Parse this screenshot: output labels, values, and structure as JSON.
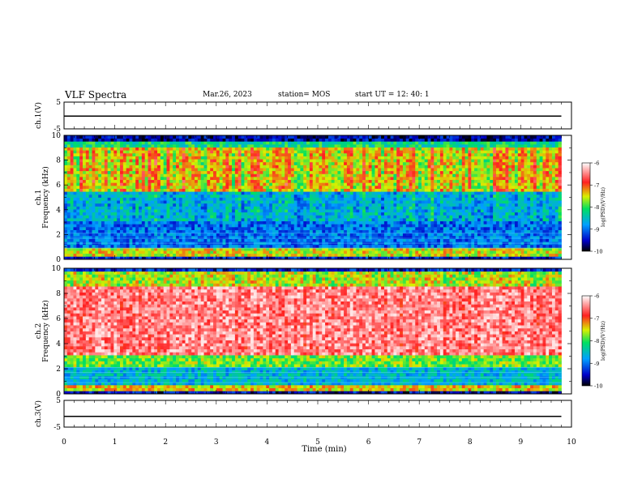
{
  "header": {
    "title": "VLF Spectra",
    "date": "Mar.26, 2023",
    "station": "station= MOS",
    "start_ut": "start  UT =    12: 40: 1"
  },
  "chart_data": [
    {
      "type": "line",
      "panel": "ch1-voltage",
      "ylabel": "ch.1(V)",
      "ylim": [
        -5,
        5
      ],
      "y_ticks": [
        "5",
        "-5"
      ],
      "series": [
        {
          "values": [
            -0.2,
            -0.2,
            -0.2,
            -0.2,
            -0.2
          ]
        }
      ],
      "x": [
        0,
        2.5,
        5,
        7.5,
        9.8
      ]
    },
    {
      "type": "heatmap",
      "panel": "ch1-spectrogram",
      "ylabel": "ch.1\nFrequency (kHz)",
      "ylim": [
        0,
        10
      ],
      "y_ticks": [
        "0",
        "2",
        "4",
        "6",
        "8",
        "10"
      ],
      "xlim": [
        0,
        10
      ],
      "data_extent_min": 9.8,
      "colorbar": {
        "label": "log(PSD)(V²/Hz)",
        "ticks": [
          "-6",
          "-7",
          "-8",
          "-9",
          "-10"
        ],
        "range": [
          -10,
          -6
        ]
      }
    },
    {
      "type": "heatmap",
      "panel": "ch2-spectrogram",
      "ylabel": "ch.2\nFrequency (kHz)",
      "ylim": [
        0,
        10
      ],
      "y_ticks": [
        "0",
        "2",
        "4",
        "6",
        "8",
        "10"
      ],
      "xlim": [
        0,
        10
      ],
      "data_extent_min": 9.8,
      "colorbar": {
        "label": "log(PSD)(V²/Hz)",
        "ticks": [
          "-6",
          "-7",
          "-8",
          "-9",
          "-10"
        ],
        "range": [
          -10,
          -6
        ]
      }
    },
    {
      "type": "line",
      "panel": "ch3-voltage",
      "ylabel": "ch.3(V)",
      "ylim": [
        -5,
        5
      ],
      "y_ticks": [
        "5",
        "-5"
      ],
      "series": [
        {
          "values": [
            -1.0,
            -1.0,
            -1.0,
            -1.0,
            -1.0
          ]
        }
      ],
      "x": [
        0,
        2.5,
        5,
        7.5,
        9.8
      ]
    }
  ],
  "x_axis": {
    "label": "Time (min)",
    "ticks": [
      "0",
      "1",
      "2",
      "3",
      "4",
      "5",
      "6",
      "7",
      "8",
      "9",
      "10"
    ],
    "xlim": [
      0,
      10
    ]
  }
}
